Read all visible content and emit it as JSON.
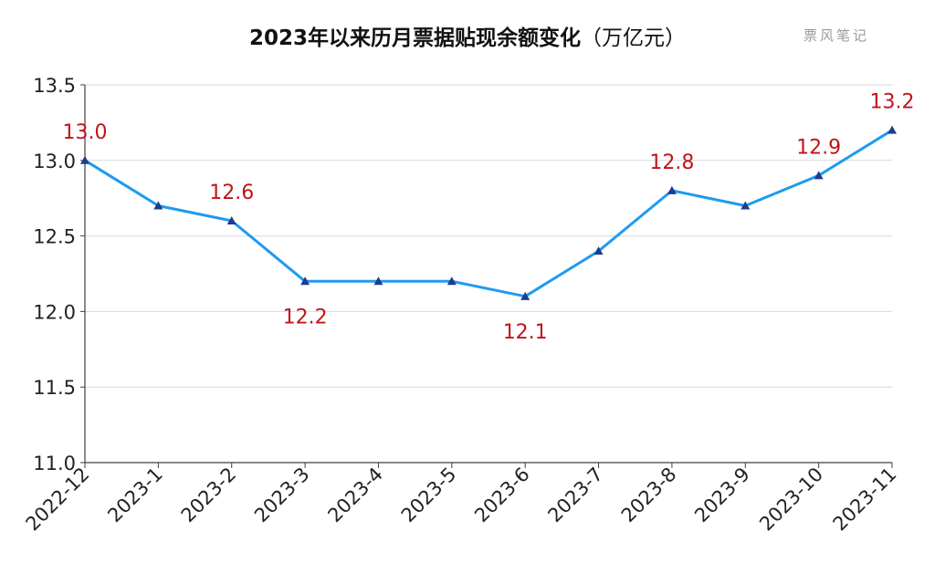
{
  "header": {
    "title": "2023年以来历月票据贴现余额变化",
    "unit": "（万亿元）",
    "watermark": "票风笔记"
  },
  "colors": {
    "line": "#1E9BF0",
    "marker": "#1F3C8F",
    "label": "#C0141B",
    "grid": "#D9D9D9",
    "axis": "#404040"
  },
  "chart_data": {
    "type": "line",
    "title": "2023年以来历月票据贴现余额变化（万亿元）",
    "xlabel": "",
    "ylabel": "",
    "categories": [
      "2022-12",
      "2023-1",
      "2023-2",
      "2023-3",
      "2023-4",
      "2023-5",
      "2023-6",
      "2023-7",
      "2023-8",
      "2023-9",
      "2023-10",
      "2023-11"
    ],
    "series": [
      {
        "values": [
          13.0,
          12.7,
          12.6,
          12.2,
          12.2,
          12.2,
          12.1,
          12.4,
          12.8,
          12.7,
          12.9,
          13.2
        ]
      }
    ],
    "data_labels": [
      {
        "index": 0,
        "text": "13.0",
        "placement": "above"
      },
      {
        "index": 2,
        "text": "12.6",
        "placement": "above"
      },
      {
        "index": 3,
        "text": "12.2",
        "placement": "below"
      },
      {
        "index": 6,
        "text": "12.1",
        "placement": "below"
      },
      {
        "index": 8,
        "text": "12.8",
        "placement": "above"
      },
      {
        "index": 10,
        "text": "12.9",
        "placement": "above"
      },
      {
        "index": 11,
        "text": "13.2",
        "placement": "above"
      }
    ],
    "ylim": [
      11.0,
      13.5
    ],
    "yticks": [
      "11.0",
      "11.5",
      "12.0",
      "12.5",
      "13.0",
      "13.5"
    ],
    "grid": true,
    "legend": "none"
  }
}
